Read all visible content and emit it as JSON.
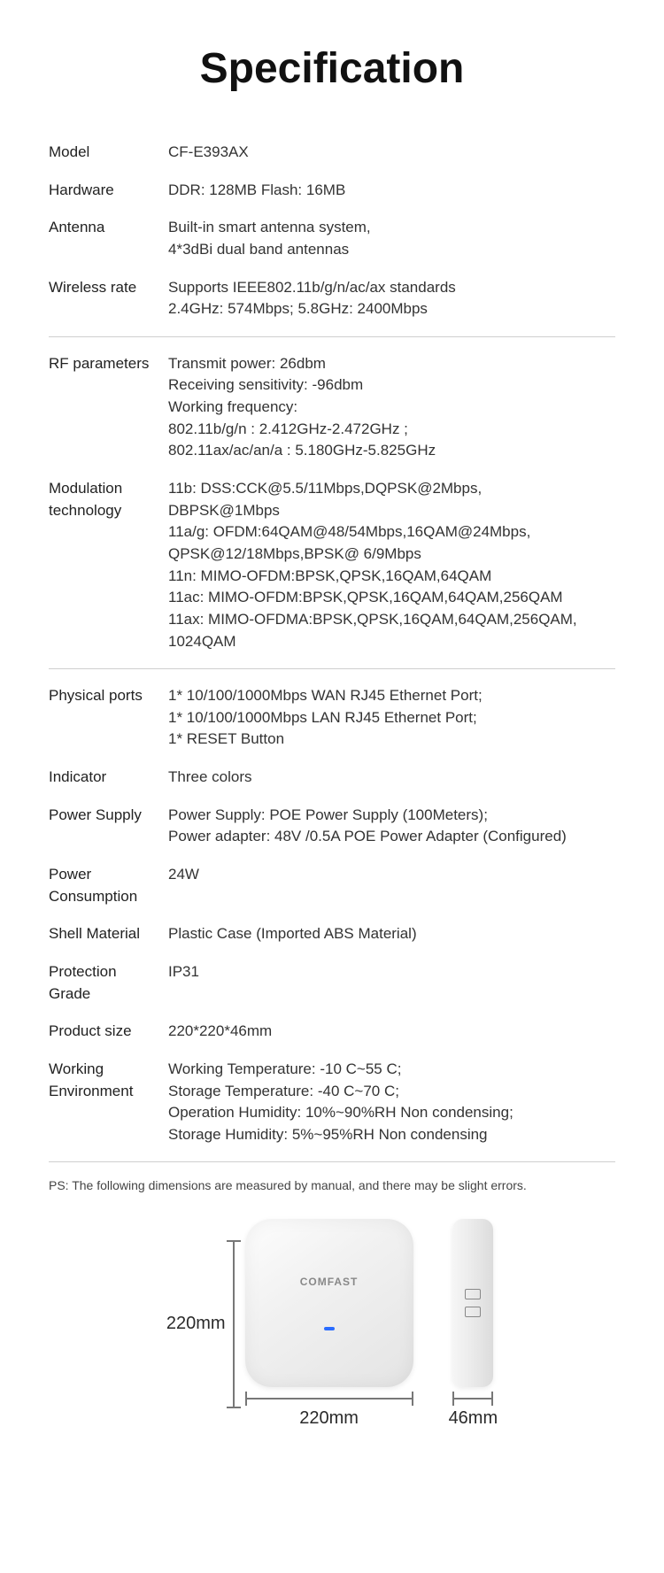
{
  "title": "Specification",
  "rows": [
    {
      "label": "Model",
      "value": "CF-E393AX"
    },
    {
      "label": "Hardware",
      "value": "DDR: 128MB        Flash: 16MB"
    },
    {
      "label": "Antenna",
      "value": "Built-in smart antenna system,\n4*3dBi dual band antennas"
    },
    {
      "label": "Wireless rate",
      "value": "Supports IEEE802.11b/g/n/ac/ax standards\n2.4GHz: 574Mbps; 5.8GHz: 2400Mbps"
    }
  ],
  "rows2": [
    {
      "label": "RF parameters",
      "value": "Transmit power:  26dbm\nReceiving sensitivity: -96dbm\nWorking frequency:\n802.11b/g/n : 2.412GHz-2.472GHz ;\n802.11ax/ac/an/a : 5.180GHz-5.825GHz"
    },
    {
      "label": "Modulation\ntechnology",
      "value": "11b: DSS:CCK@5.5/11Mbps,DQPSK@2Mbps,\n          DBPSK@1Mbps\n11a/g: OFDM:64QAM@48/54Mbps,16QAM@24Mbps,\n            QPSK@12/18Mbps,BPSK@ 6/9Mbps\n11n: MIMO-OFDM:BPSK,QPSK,16QAM,64QAM\n11ac: MIMO-OFDM:BPSK,QPSK,16QAM,64QAM,256QAM\n11ax: MIMO-OFDMA:BPSK,QPSK,16QAM,64QAM,256QAM,\n           1024QAM"
    }
  ],
  "rows3": [
    {
      "label": "Physical ports",
      "value": "1* 10/100/1000Mbps WAN RJ45 Ethernet Port;\n1* 10/100/1000Mbps LAN RJ45 Ethernet Port;\n1* RESET Button"
    },
    {
      "label": "Indicator",
      "value": "Three colors"
    },
    {
      "label": "Power Supply",
      "value": "Power Supply: POE Power Supply (100Meters);\nPower adapter: 48V /0.5A POE Power Adapter (Configured)"
    },
    {
      "label": "Power\nConsumption",
      "value": "24W"
    },
    {
      "label": "Shell Material",
      "value": "Plastic Case (Imported ABS Material)"
    },
    {
      "label": "Protection\nGrade",
      "value": "IP31"
    },
    {
      "label": "Product size",
      "value": "220*220*46mm"
    },
    {
      "label": "Working\nEnvironment",
      "value": "Working Temperature: -10 C~55 C;\nStorage Temperature: -40 C~70 C;\nOperation Humidity: 10%~90%RH Non condensing;\nStorage Humidity: 5%~95%RH Non condensing"
    }
  ],
  "ps_note": "PS: The following dimensions are measured by manual, and there may be slight errors.",
  "dimensions": {
    "height_label": "220mm",
    "width_label": "220mm",
    "depth_label": "46mm",
    "brand": "COMFAST"
  }
}
